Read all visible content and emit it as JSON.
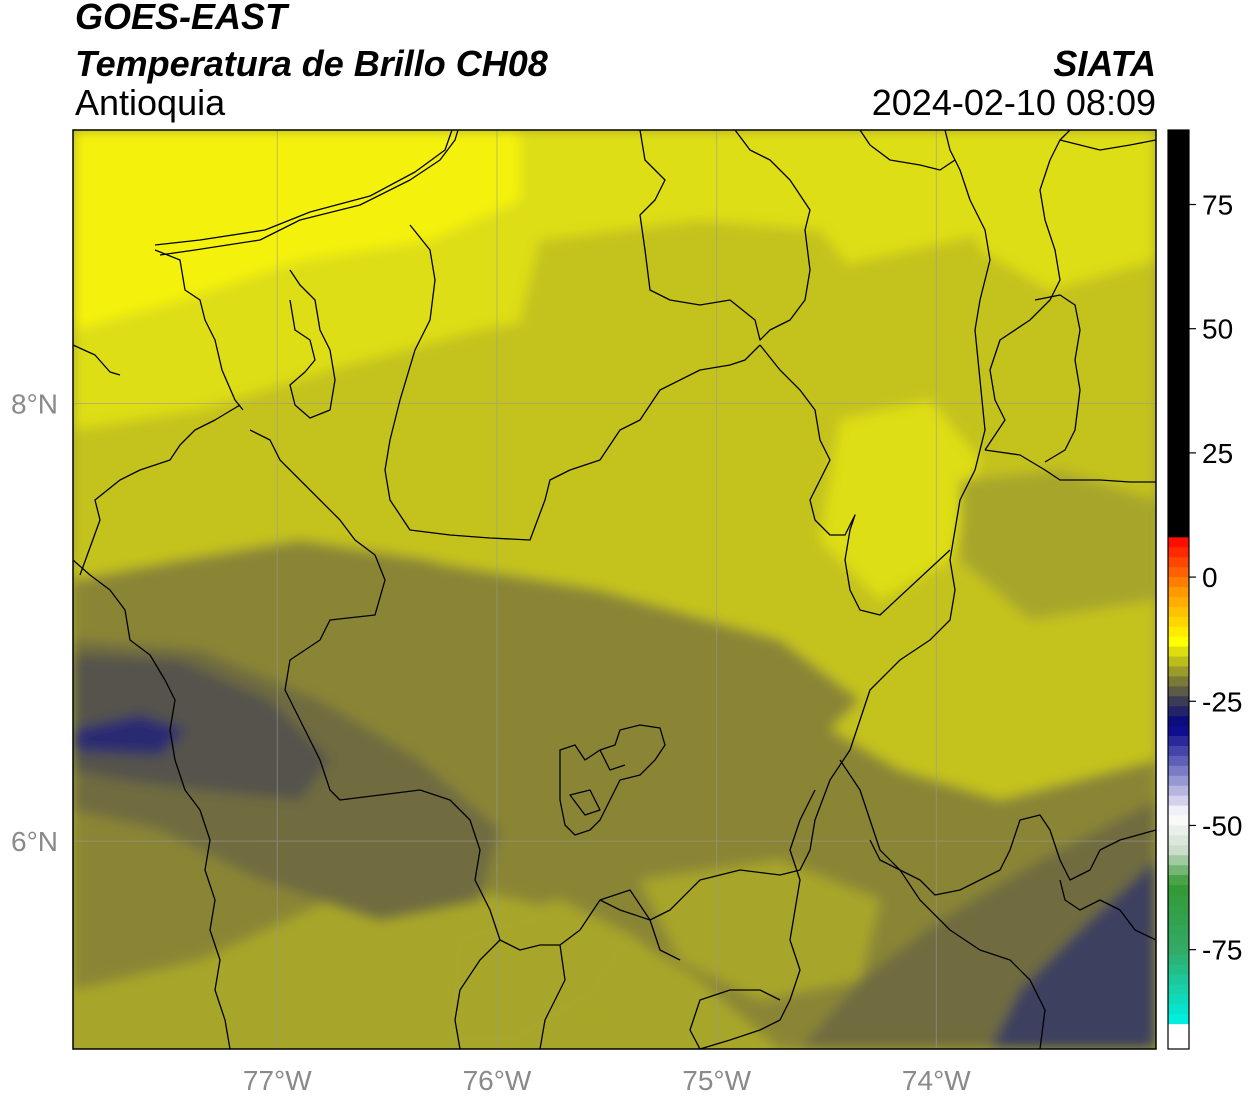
{
  "header": {
    "satellite": "GOES-EAST",
    "product": "Temperatura de Brillo CH08",
    "region": "Antioquia",
    "organization": "SIATA",
    "timestamp": "2024-02-10 08:09"
  },
  "map": {
    "lon_ticks": [
      {
        "value": -77,
        "label": "77°W"
      },
      {
        "value": -76,
        "label": "76°W"
      },
      {
        "value": -75,
        "label": "75°W"
      },
      {
        "value": -74,
        "label": "74°W"
      }
    ],
    "lat_ticks": [
      {
        "value": 8,
        "label": "8°N"
      },
      {
        "value": 6,
        "label": "6°N"
      }
    ],
    "lon_range": [
      -77.93,
      -73.0
    ],
    "lat_range": [
      5.05,
      9.25
    ],
    "palette": {
      "bright_yellow": "#f4f20a",
      "yellow": "#dede14",
      "olive_light": "#c4c21f",
      "olive": "#a8a62a",
      "olive_dark": "#8a8535",
      "olive_grey": "#6f6c40",
      "slate": "#54524c",
      "blue_slate": "#3e3f5e",
      "navy": "#2a2c72"
    }
  },
  "colorbar": {
    "ticks": [
      {
        "value": 75,
        "label": "75"
      },
      {
        "value": 50,
        "label": "50"
      },
      {
        "value": 25,
        "label": "25"
      },
      {
        "value": 0,
        "label": "0"
      },
      {
        "value": -25,
        "label": "-25"
      },
      {
        "value": -50,
        "label": "-50"
      },
      {
        "value": -75,
        "label": "-75"
      }
    ],
    "range": [
      -95,
      90
    ],
    "stops": [
      {
        "value": 90,
        "color": "#000000"
      },
      {
        "value": 9,
        "color": "#000000"
      },
      {
        "value": 8,
        "color": "#ff0000"
      },
      {
        "value": -3,
        "color": "#ff9900"
      },
      {
        "value": -13,
        "color": "#ffff00"
      },
      {
        "value": -20,
        "color": "#8a8a30"
      },
      {
        "value": -25,
        "color": "#3b3b55"
      },
      {
        "value": -30,
        "color": "#000088"
      },
      {
        "value": -40,
        "color": "#8888cc"
      },
      {
        "value": -48,
        "color": "#ffffff"
      },
      {
        "value": -55,
        "color": "#ccddcc"
      },
      {
        "value": -62,
        "color": "#339933"
      },
      {
        "value": -75,
        "color": "#33aa66"
      },
      {
        "value": -89,
        "color": "#00eedd"
      },
      {
        "value": -90,
        "color": "#ffffff"
      },
      {
        "value": -95,
        "color": "#ffffff"
      }
    ]
  }
}
